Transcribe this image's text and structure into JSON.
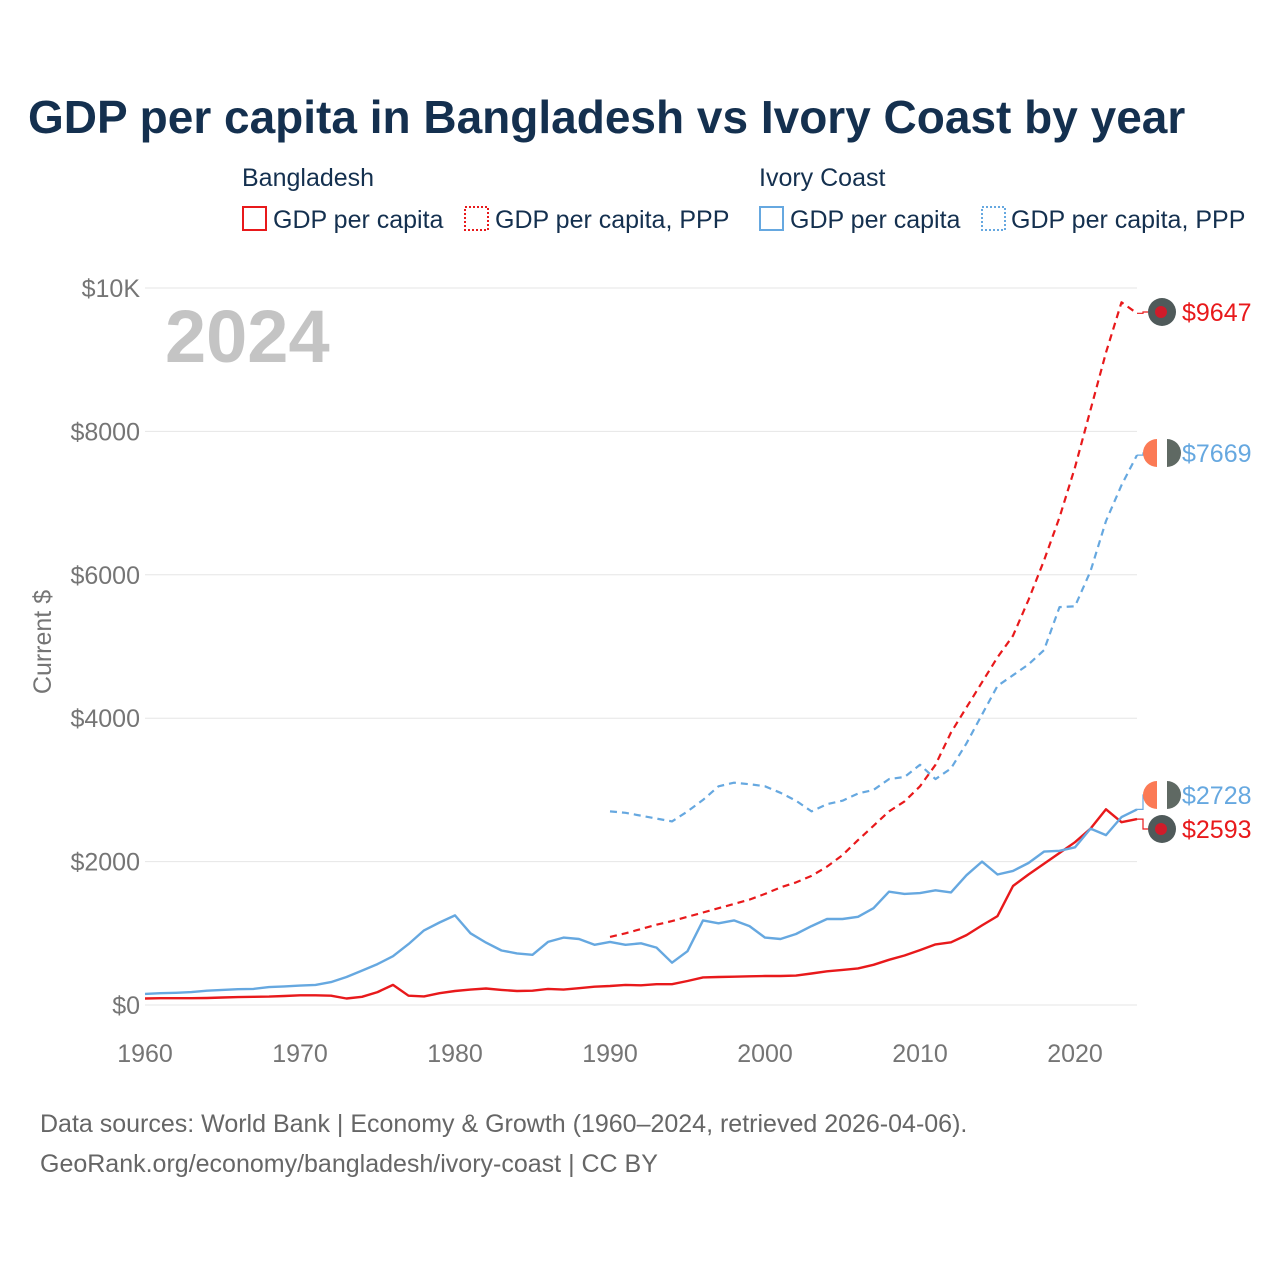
{
  "colors": {
    "bangladesh": "#e8191b",
    "ivory_coast": "#66a8e0",
    "title": "#14304f",
    "muted": "#757575",
    "grid": "#e6e6e6",
    "watermark": "#c4c4c4"
  },
  "chart_data": {
    "type": "line",
    "title": "GDP per capita in Bangladesh vs Ivory Coast by year",
    "xlabel": "",
    "ylabel": "Current $",
    "xlim": [
      1960,
      2024
    ],
    "ylim": [
      0,
      10000
    ],
    "x_ticks": [
      1960,
      1970,
      1980,
      1990,
      2000,
      2010,
      2020
    ],
    "x_tick_labels": [
      "1960",
      "1970",
      "1980",
      "1990",
      "2000",
      "2010",
      "2020"
    ],
    "y_ticks": [
      0,
      2000,
      4000,
      6000,
      8000,
      10000
    ],
    "y_tick_labels": [
      "$0",
      "$2000",
      "$4000",
      "$6000",
      "$8000",
      "$10K"
    ],
    "grid": true,
    "legend_position": "top",
    "year_label": "2024",
    "legend_groups": [
      {
        "name": "Bangladesh",
        "items": [
          "GDP per capita",
          "GDP per capita, PPP"
        ]
      },
      {
        "name": "Ivory Coast",
        "items": [
          "GDP per capita",
          "GDP per capita, PPP"
        ]
      }
    ],
    "series": [
      {
        "name": "Bangladesh GDP per capita",
        "country": "Bangladesh",
        "style": "solid",
        "color": "#e8191b",
        "x": [
          1960,
          1961,
          1962,
          1963,
          1964,
          1965,
          1966,
          1967,
          1968,
          1969,
          1970,
          1971,
          1972,
          1973,
          1974,
          1975,
          1976,
          1977,
          1978,
          1979,
          1980,
          1981,
          1982,
          1983,
          1984,
          1985,
          1986,
          1987,
          1988,
          1989,
          1990,
          1991,
          1992,
          1993,
          1994,
          1995,
          1996,
          1997,
          1998,
          1999,
          2000,
          2001,
          2002,
          2003,
          2004,
          2005,
          2006,
          2007,
          2008,
          2009,
          2010,
          2011,
          2012,
          2013,
          2014,
          2015,
          2016,
          2017,
          2018,
          2019,
          2020,
          2021,
          2022,
          2023,
          2024
        ],
        "values": [
          90,
          95,
          95,
          95,
          97,
          105,
          110,
          115,
          117,
          125,
          135,
          135,
          130,
          90,
          115,
          180,
          280,
          130,
          120,
          165,
          195,
          215,
          230,
          210,
          195,
          200,
          225,
          215,
          235,
          255,
          265,
          280,
          275,
          290,
          290,
          335,
          385,
          390,
          395,
          400,
          405,
          405,
          410,
          440,
          470,
          490,
          510,
          560,
          630,
          690,
          765,
          845,
          875,
          975,
          1110,
          1240,
          1660,
          1820,
          1970,
          2120,
          2270,
          2460,
          2730,
          2550,
          2593
        ],
        "end_label": "$2593"
      },
      {
        "name": "Bangladesh GDP per capita, PPP",
        "country": "Bangladesh",
        "style": "dashed",
        "color": "#e8191b",
        "x": [
          1990,
          1991,
          1992,
          1993,
          1994,
          1995,
          1996,
          1997,
          1998,
          1999,
          2000,
          2001,
          2002,
          2003,
          2004,
          2005,
          2006,
          2007,
          2008,
          2009,
          2010,
          2011,
          2012,
          2013,
          2014,
          2015,
          2016,
          2017,
          2018,
          2019,
          2020,
          2021,
          2022,
          2023,
          2024
        ],
        "values": [
          950,
          1000,
          1060,
          1120,
          1170,
          1230,
          1290,
          1350,
          1410,
          1470,
          1550,
          1640,
          1710,
          1800,
          1930,
          2090,
          2300,
          2500,
          2700,
          2840,
          3050,
          3350,
          3800,
          4150,
          4500,
          4850,
          5150,
          5650,
          6200,
          6800,
          7500,
          8300,
          9100,
          9800,
          9647
        ],
        "end_label": "$9647"
      },
      {
        "name": "Ivory Coast GDP per capita",
        "country": "Ivory Coast",
        "style": "solid",
        "color": "#66a8e0",
        "x": [
          1960,
          1961,
          1962,
          1963,
          1964,
          1965,
          1966,
          1967,
          1968,
          1969,
          1970,
          1971,
          1972,
          1973,
          1974,
          1975,
          1976,
          1977,
          1978,
          1979,
          1980,
          1981,
          1982,
          1983,
          1984,
          1985,
          1986,
          1987,
          1988,
          1989,
          1990,
          1991,
          1992,
          1993,
          1994,
          1995,
          1996,
          1997,
          1998,
          1999,
          2000,
          2001,
          2002,
          2003,
          2004,
          2005,
          2006,
          2007,
          2008,
          2009,
          2010,
          2011,
          2012,
          2013,
          2014,
          2015,
          2016,
          2017,
          2018,
          2019,
          2020,
          2021,
          2022,
          2023,
          2024
        ],
        "values": [
          155,
          165,
          170,
          180,
          200,
          210,
          220,
          225,
          250,
          260,
          270,
          280,
          320,
          390,
          480,
          570,
          680,
          850,
          1040,
          1150,
          1250,
          1000,
          870,
          760,
          720,
          700,
          880,
          940,
          920,
          840,
          880,
          840,
          860,
          800,
          590,
          750,
          1180,
          1140,
          1180,
          1100,
          940,
          920,
          990,
          1100,
          1200,
          1200,
          1230,
          1350,
          1580,
          1550,
          1560,
          1600,
          1570,
          1810,
          2000,
          1820,
          1870,
          1980,
          2140,
          2150,
          2200,
          2460,
          2370,
          2620,
          2728
        ],
        "end_label": "$2728"
      },
      {
        "name": "Ivory Coast GDP per capita, PPP",
        "country": "Ivory Coast",
        "style": "dashed",
        "color": "#66a8e0",
        "x": [
          1990,
          1991,
          1992,
          1993,
          1994,
          1995,
          1996,
          1997,
          1998,
          1999,
          2000,
          2001,
          2002,
          2003,
          2004,
          2005,
          2006,
          2007,
          2008,
          2009,
          2010,
          2011,
          2012,
          2013,
          2014,
          2015,
          2016,
          2017,
          2018,
          2019,
          2020,
          2021,
          2022,
          2023,
          2024
        ],
        "values": [
          2700,
          2680,
          2640,
          2600,
          2560,
          2700,
          2860,
          3050,
          3100,
          3080,
          3050,
          2960,
          2850,
          2700,
          2800,
          2850,
          2950,
          3000,
          3150,
          3180,
          3350,
          3150,
          3300,
          3650,
          4050,
          4450,
          4600,
          4750,
          4950,
          5550,
          5560,
          6050,
          6750,
          7250,
          7669
        ],
        "end_label": "$7669"
      }
    ]
  },
  "source": {
    "line1": "Data sources: World Bank | Economy & Growth (1960–2024, retrieved 2026-04-06).",
    "line2": "GeoRank.org/economy/bangladesh/ivory-coast | CC BY"
  }
}
